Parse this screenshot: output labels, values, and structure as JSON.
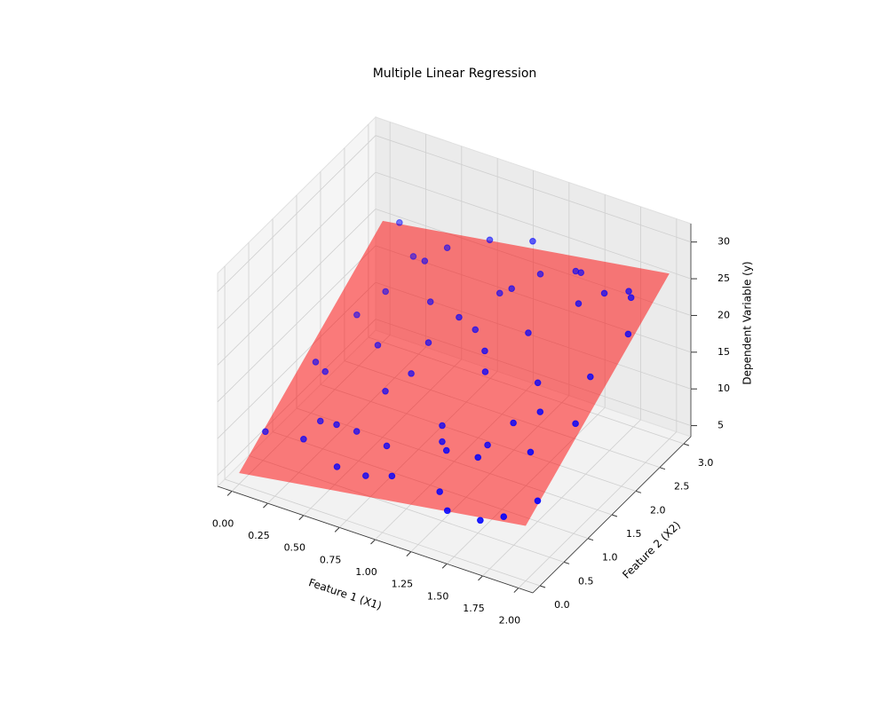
{
  "chart_data": {
    "type": "scatter3d",
    "title": "Multiple Linear Regression",
    "xlabel": "Feature 1 (X1)",
    "ylabel": "Feature 2 (X2)",
    "zlabel": "Dependent Variable (y)",
    "color": "blue",
    "x": [
      0.05,
      0.12,
      0.2,
      0.28,
      0.35,
      0.4,
      0.46,
      0.52,
      0.6,
      0.65,
      0.7,
      0.78,
      0.83,
      0.9,
      0.95,
      1.0,
      1.05,
      1.1,
      1.15,
      1.2,
      1.25,
      1.3,
      1.35,
      1.4,
      1.45,
      1.5,
      1.55,
      1.6,
      1.65,
      1.7,
      1.75,
      1.8,
      1.85,
      1.9,
      1.95,
      0.1,
      0.3,
      0.55,
      0.75,
      0.98,
      1.18,
      1.38,
      1.58,
      1.78,
      1.98,
      0.22,
      0.48,
      0.72,
      1.08,
      1.42,
      1.68,
      1.88,
      0.15,
      0.62,
      1.28
    ],
    "y": [
      0.4,
      2.1,
      1.2,
      2.8,
      0.3,
      1.7,
      2.5,
      0.9,
      2.2,
      0.1,
      1.5,
      2.9,
      0.6,
      1.9,
      2.6,
      0.2,
      1.1,
      2.4,
      0.8,
      2.7,
      1.4,
      0.3,
      2.0,
      1.0,
      2.8,
      0.5,
      1.6,
      2.3,
      0.1,
      1.2,
      2.9,
      0.7,
      1.8,
      2.5,
      0.4,
      1.3,
      0.8,
      2.7,
      0.4,
      2.0,
      1.6,
      2.9,
      1.0,
      0.2,
      2.2,
      2.4,
      0.6,
      1.8,
      2.9,
      0.1,
      2.6,
      1.4,
      2.9,
      1.2,
      0.5
    ],
    "z": [
      8.4,
      13.8,
      12.4,
      18.3,
      10,
      14.1,
      20.8,
      8.3,
      18.1,
      9.5,
      13.5,
      23.2,
      10.3,
      19.9,
      19,
      9.9,
      11.3,
      21.9,
      11.7,
      22.6,
      18,
      9.1,
      20.1,
      11.6,
      23.8,
      13.8,
      17.2,
      23.8,
      8.8,
      16.8,
      22.6,
      15.2,
      18.7,
      25.3,
      11.5,
      12.4,
      8.9,
      21.9,
      7,
      18.1,
      19.1,
      22.9,
      15.8,
      9.5,
      22.8,
      15.7,
      10.9,
      15.9,
      25,
      8.6,
      23.8,
      15.1,
      21.4,
      12.5,
      13.3
    ],
    "surface": {
      "color": "red",
      "alpha": 0.5,
      "x": [
        0,
        2
      ],
      "y": [
        0,
        3
      ],
      "z": [
        [
          5,
          20
        ],
        [
          11,
          26
        ]
      ]
    },
    "xlim": [
      -0.1,
      2.1
    ],
    "ylim": [
      -0.15,
      3.15
    ],
    "zlim": [
      3.5,
      32.5
    ],
    "xticks": [
      {
        "value": 0,
        "label": "0.00"
      },
      {
        "value": 0.25,
        "label": "0.25"
      },
      {
        "value": 0.5,
        "label": "0.50"
      },
      {
        "value": 0.75,
        "label": "0.75"
      },
      {
        "value": 1,
        "label": "1.00"
      },
      {
        "value": 1.25,
        "label": "1.25"
      },
      {
        "value": 1.5,
        "label": "1.50"
      },
      {
        "value": 1.75,
        "label": "1.75"
      },
      {
        "value": 2,
        "label": "2.00"
      }
    ],
    "yticks": [
      {
        "value": 0,
        "label": "0.0"
      },
      {
        "value": 0.5,
        "label": "0.5"
      },
      {
        "value": 1,
        "label": "1.0"
      },
      {
        "value": 1.5,
        "label": "1.5"
      },
      {
        "value": 2,
        "label": "2.0"
      },
      {
        "value": 2.5,
        "label": "2.5"
      },
      {
        "value": 3,
        "label": "3.0"
      }
    ],
    "zticks": [
      5,
      10,
      15,
      20,
      25,
      30
    ],
    "grid": true
  }
}
